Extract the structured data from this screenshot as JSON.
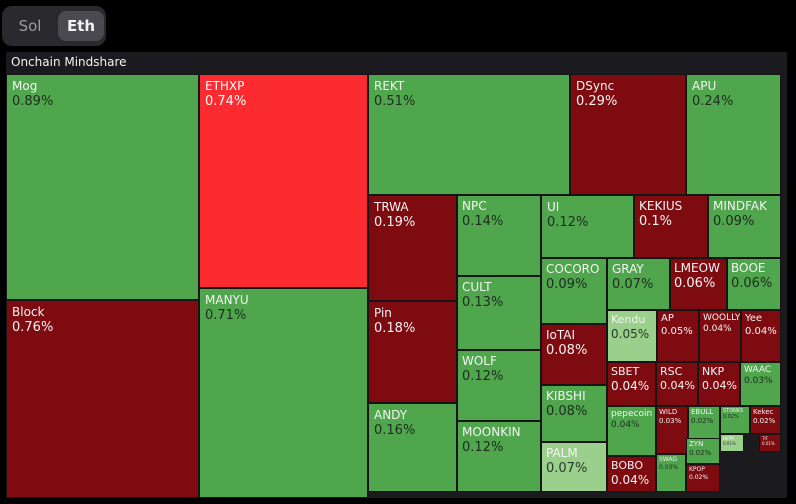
{
  "tabs": [
    {
      "label": "Sol",
      "selected": false
    },
    {
      "label": "Eth",
      "selected": true
    }
  ],
  "panel": {
    "title": "Onchain Mindshare"
  },
  "colors": {
    "green": "#4fa64d",
    "dark_red": "#7e0b10",
    "bright_red": "#fc2b30",
    "light_green": "#9acf8c",
    "background": "#000000",
    "panel": "#1b1b1f"
  },
  "treemap": [
    {
      "name": "Mog",
      "pct": "0.89%",
      "color": "green"
    },
    {
      "name": "Block",
      "pct": "0.76%",
      "color": "dark_red"
    },
    {
      "name": "ETHXP",
      "pct": "0.74%",
      "color": "bright_red"
    },
    {
      "name": "MANYU",
      "pct": "0.71%",
      "color": "green"
    },
    {
      "name": "REKT",
      "pct": "0.51%",
      "color": "green"
    },
    {
      "name": "DSync",
      "pct": "0.29%",
      "color": "dark_red"
    },
    {
      "name": "APU",
      "pct": "0.24%",
      "color": "green"
    },
    {
      "name": "TRWA",
      "pct": "0.19%",
      "color": "dark_red"
    },
    {
      "name": "Pin",
      "pct": "0.18%",
      "color": "dark_red"
    },
    {
      "name": "ANDY",
      "pct": "0.16%",
      "color": "green"
    },
    {
      "name": "NPC",
      "pct": "0.14%",
      "color": "green"
    },
    {
      "name": "CULT",
      "pct": "0.13%",
      "color": "green"
    },
    {
      "name": "WOLF",
      "pct": "0.12%",
      "color": "green"
    },
    {
      "name": "MOONKIN",
      "pct": "0.12%",
      "color": "green"
    },
    {
      "name": "UI",
      "pct": "0.12%",
      "color": "green"
    },
    {
      "name": "KEKIUS",
      "pct": "0.1%",
      "color": "dark_red"
    },
    {
      "name": "MINDFAK",
      "pct": "0.09%",
      "color": "green"
    },
    {
      "name": "COCORO",
      "pct": "0.09%",
      "color": "green"
    },
    {
      "name": "GRAY",
      "pct": "0.07%",
      "color": "green"
    },
    {
      "name": "LMEOW",
      "pct": "0.06%",
      "color": "dark_red"
    },
    {
      "name": "BOOE",
      "pct": "0.06%",
      "color": "green"
    },
    {
      "name": "IoTAI",
      "pct": "0.08%",
      "color": "dark_red"
    },
    {
      "name": "KIBSHI",
      "pct": "0.08%",
      "color": "green"
    },
    {
      "name": "PALM",
      "pct": "0.07%",
      "color": "light_green"
    },
    {
      "name": "Kendu",
      "pct": "0.05%",
      "color": "light_green"
    },
    {
      "name": "AP",
      "pct": "0.05%",
      "color": "dark_red"
    },
    {
      "name": "WOOLLY",
      "pct": "0.04%",
      "color": "dark_red"
    },
    {
      "name": "Yee",
      "pct": "0.04%",
      "color": "dark_red"
    },
    {
      "name": "SBET",
      "pct": "0.04%",
      "color": "dark_red"
    },
    {
      "name": "RSC",
      "pct": "0.04%",
      "color": "dark_red"
    },
    {
      "name": "NKP",
      "pct": "0.04%",
      "color": "dark_red"
    },
    {
      "name": "WAAC",
      "pct": "0.03%",
      "color": "green"
    },
    {
      "name": "pepecoin",
      "pct": "0.04%",
      "color": "green"
    },
    {
      "name": "WILD",
      "pct": "0.03%",
      "color": "dark_red"
    },
    {
      "name": "EBULL",
      "pct": "0.02%",
      "color": "green"
    },
    {
      "name": "STONKS",
      "pct": "0.02%",
      "color": "green"
    },
    {
      "name": "Kekec",
      "pct": "0.02%",
      "color": "dark_red"
    },
    {
      "name": "BOBO",
      "pct": "0.04%",
      "color": "dark_red"
    },
    {
      "name": "SWAG",
      "pct": "0.03%",
      "color": "green"
    },
    {
      "name": "ZYN",
      "pct": "0.02%",
      "color": "green"
    },
    {
      "name": "KPOP",
      "pct": "0.02%",
      "color": "dark_red"
    },
    {
      "name": "HIPPY",
      "pct": "0.01%",
      "color": "light_green"
    },
    {
      "name": "TIF",
      "pct": "0.01%",
      "color": "dark_red"
    }
  ]
}
